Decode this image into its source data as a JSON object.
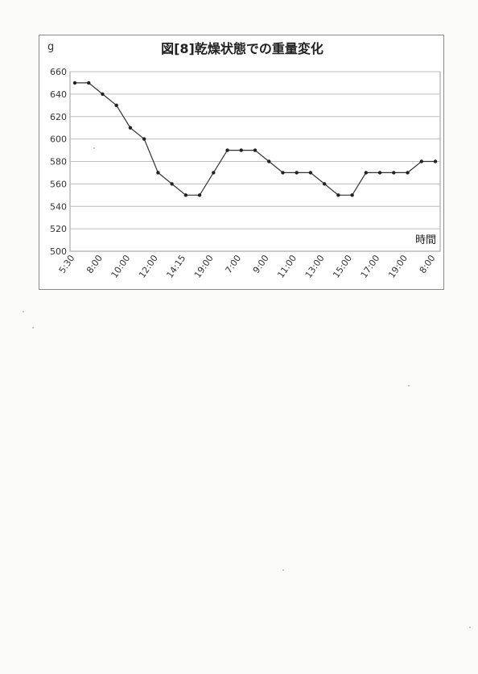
{
  "chart_data": {
    "type": "line",
    "title": "図[8]乾燥状態での重量変化",
    "ylabel": "g",
    "xlabel": "時間",
    "ylim": [
      500,
      660
    ],
    "yticks": [
      500,
      520,
      540,
      560,
      580,
      600,
      620,
      640,
      660
    ],
    "x_tick_labels": [
      "5:30",
      "8:00",
      "10:00",
      "12:00",
      "14:15",
      "19:00",
      "7:00",
      "9:00",
      "11:00",
      "13:00",
      "15:00",
      "17:00",
      "19:00",
      "8:00"
    ],
    "series": [
      {
        "values": [
          650,
          650,
          640,
          630,
          610,
          600,
          570,
          560,
          550,
          550,
          570,
          590,
          590,
          590,
          580,
          570,
          570,
          570,
          560,
          550,
          550,
          570,
          570,
          570,
          570,
          580,
          580
        ]
      }
    ],
    "grid": true,
    "colors": {
      "line": "#333333",
      "marker": "#222222",
      "grid": "#bdbdbd"
    }
  }
}
